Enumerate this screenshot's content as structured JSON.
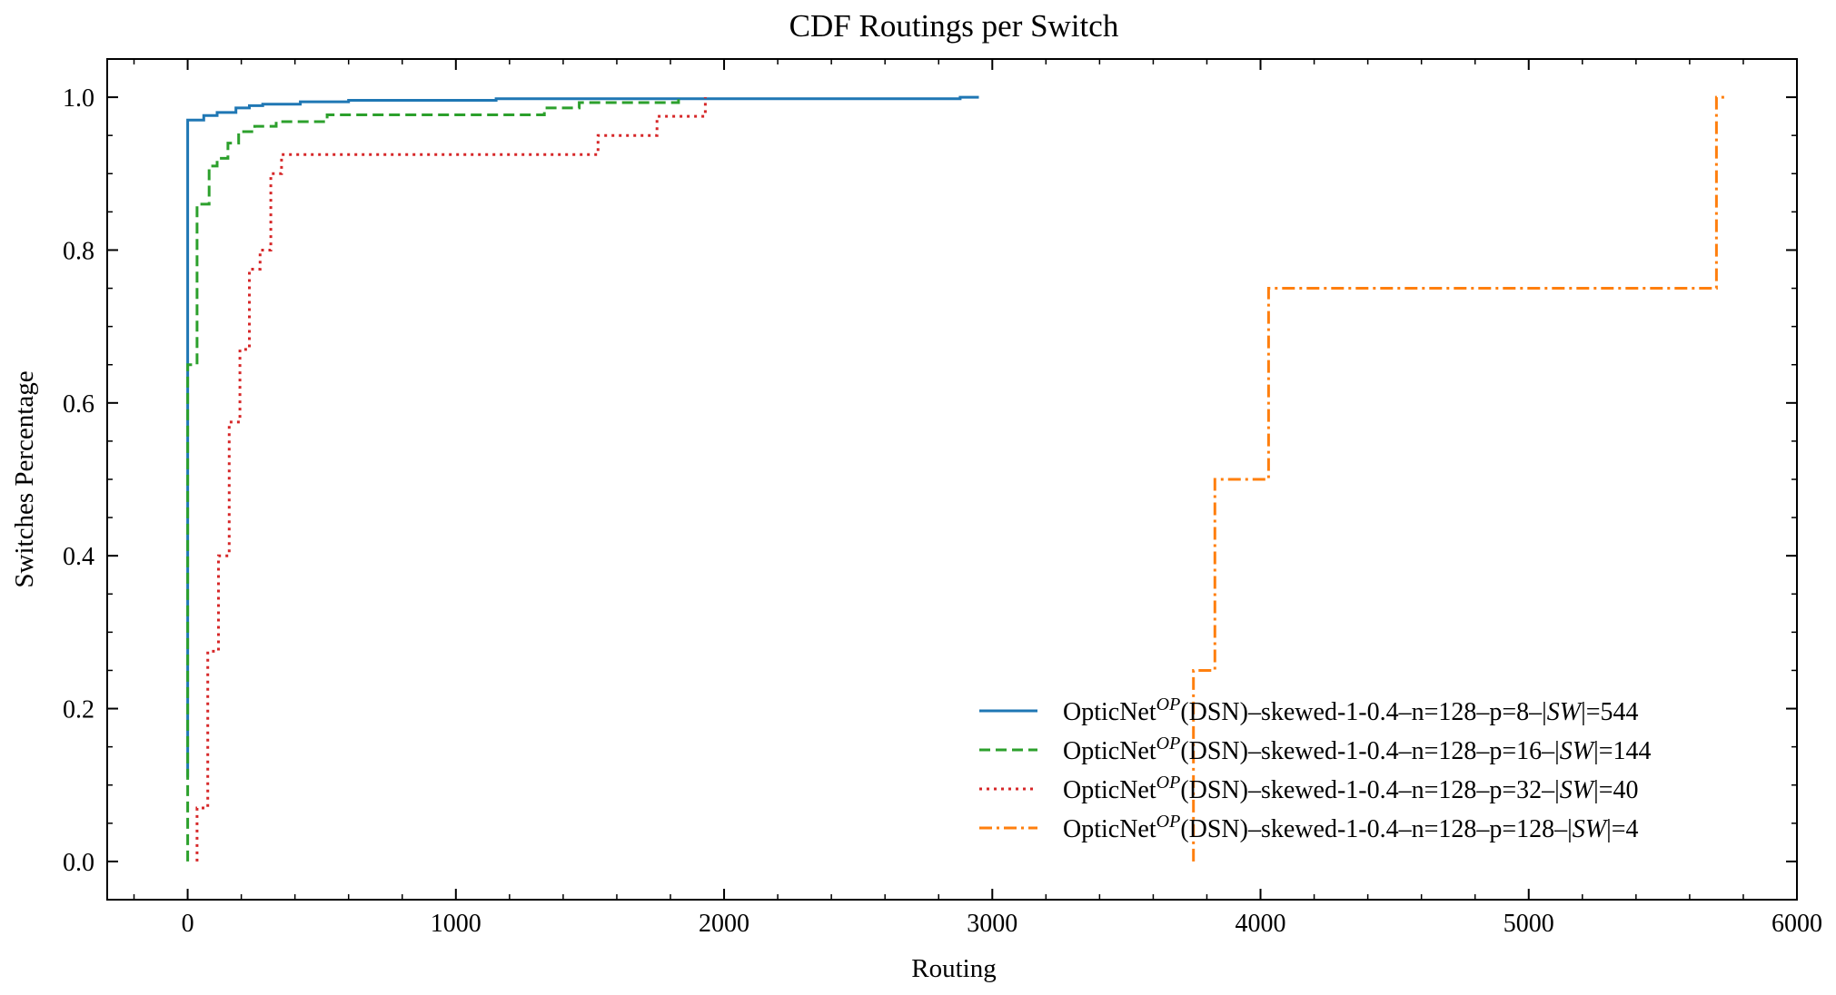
{
  "chart_data": {
    "type": "line",
    "step": true,
    "title": "CDF Routings per Switch",
    "xlabel": "Routing",
    "ylabel": "Switches Percentage",
    "xlim": [
      -300,
      6000
    ],
    "ylim": [
      -0.05,
      1.05
    ],
    "xticks": [
      0,
      1000,
      2000,
      3000,
      4000,
      5000,
      6000
    ],
    "xtick_labels": [
      "0",
      "1000",
      "2000",
      "3000",
      "4000",
      "5000",
      "6000"
    ],
    "yticks": [
      0.0,
      0.2,
      0.4,
      0.6,
      0.8,
      1.0
    ],
    "ytick_labels": [
      "0.0",
      "0.2",
      "0.4",
      "0.6",
      "0.8",
      "1.0"
    ],
    "grid": false,
    "legend_position": "lower-right",
    "series": [
      {
        "name_base": "OpticNet",
        "name_sup": "OP",
        "name_rest": "(DSN)–skewed-1-0.4–n=128–p=8–|",
        "name_sw": "SW",
        "name_tail": "|=544",
        "color": "#1f77b4",
        "dash": "solid",
        "points": [
          [
            0,
            0.11
          ],
          [
            0,
            0.97
          ],
          [
            60,
            0.97
          ],
          [
            60,
            0.976
          ],
          [
            110,
            0.976
          ],
          [
            110,
            0.98
          ],
          [
            180,
            0.98
          ],
          [
            180,
            0.986
          ],
          [
            230,
            0.986
          ],
          [
            230,
            0.989
          ],
          [
            280,
            0.989
          ],
          [
            280,
            0.991
          ],
          [
            420,
            0.991
          ],
          [
            420,
            0.994
          ],
          [
            600,
            0.994
          ],
          [
            600,
            0.996
          ],
          [
            1150,
            0.996
          ],
          [
            1150,
            0.998
          ],
          [
            2880,
            0.998
          ],
          [
            2880,
            1.0
          ],
          [
            2950,
            1.0
          ]
        ]
      },
      {
        "name_base": "OpticNet",
        "name_sup": "OP",
        "name_rest": "(DSN)–skewed-1-0.4–n=128–p=16–|",
        "name_sw": "SW",
        "name_tail": "|=144",
        "color": "#2ca02c",
        "dash": "dashed",
        "points": [
          [
            0,
            0.0
          ],
          [
            0,
            0.65
          ],
          [
            35,
            0.65
          ],
          [
            35,
            0.86
          ],
          [
            80,
            0.86
          ],
          [
            80,
            0.91
          ],
          [
            110,
            0.91
          ],
          [
            110,
            0.92
          ],
          [
            150,
            0.92
          ],
          [
            150,
            0.94
          ],
          [
            190,
            0.94
          ],
          [
            190,
            0.955
          ],
          [
            250,
            0.955
          ],
          [
            250,
            0.962
          ],
          [
            330,
            0.962
          ],
          [
            330,
            0.968
          ],
          [
            520,
            0.968
          ],
          [
            520,
            0.977
          ],
          [
            1330,
            0.977
          ],
          [
            1330,
            0.986
          ],
          [
            1460,
            0.986
          ],
          [
            1460,
            0.993
          ],
          [
            1830,
            0.993
          ],
          [
            1830,
            1.0
          ]
        ]
      },
      {
        "name_base": "OpticNet",
        "name_sup": "OP",
        "name_rest": "(DSN)–skewed-1-0.4–n=128–p=32–|",
        "name_sw": "SW",
        "name_tail": "|=40",
        "color": "#d62728",
        "dash": "dotted",
        "points": [
          [
            35,
            0.0
          ],
          [
            35,
            0.07
          ],
          [
            75,
            0.07
          ],
          [
            75,
            0.275
          ],
          [
            115,
            0.275
          ],
          [
            115,
            0.4
          ],
          [
            155,
            0.4
          ],
          [
            155,
            0.575
          ],
          [
            195,
            0.575
          ],
          [
            195,
            0.67
          ],
          [
            230,
            0.67
          ],
          [
            230,
            0.775
          ],
          [
            270,
            0.775
          ],
          [
            270,
            0.8
          ],
          [
            310,
            0.8
          ],
          [
            310,
            0.9
          ],
          [
            350,
            0.9
          ],
          [
            350,
            0.925
          ],
          [
            1530,
            0.925
          ],
          [
            1530,
            0.95
          ],
          [
            1750,
            0.95
          ],
          [
            1750,
            0.975
          ],
          [
            1930,
            0.975
          ],
          [
            1930,
            1.0
          ]
        ]
      },
      {
        "name_base": "OpticNet",
        "name_sup": "OP",
        "name_rest": "(DSN)–skewed-1-0.4–n=128–p=128–|",
        "name_sw": "SW",
        "name_tail": "|=4",
        "color": "#ff7f0e",
        "dash": "dashdot",
        "points": [
          [
            3750,
            0.0
          ],
          [
            3750,
            0.25
          ],
          [
            3830,
            0.25
          ],
          [
            3830,
            0.5
          ],
          [
            4030,
            0.5
          ],
          [
            4030,
            0.75
          ],
          [
            5700,
            0.75
          ],
          [
            5700,
            1.0
          ],
          [
            5740,
            1.0
          ]
        ]
      }
    ]
  }
}
